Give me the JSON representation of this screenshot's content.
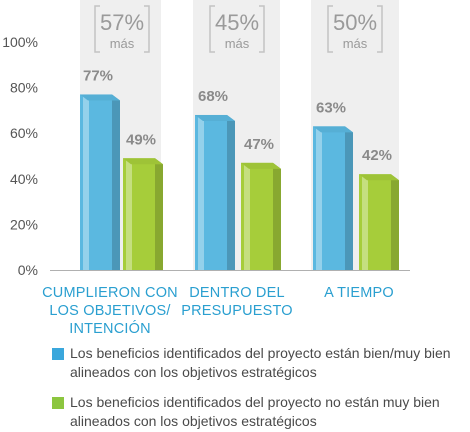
{
  "chart_data": {
    "type": "bar",
    "categories": [
      "CUMPLIERON CON\nLOS OBJETIVOS/\nINTENCIÓN",
      "DENTRO DEL\nPRESUPUESTO",
      "A TIEMPO"
    ],
    "series": [
      {
        "name": "Los beneficios identificados del proyecto están bien/muy bien alineados con los objetivos estratégicos",
        "values": [
          77,
          68,
          63
        ],
        "color": "#5bb8e0"
      },
      {
        "name": "Los beneficios identificados del proyecto no están muy bien alineados con los objetivos estratégicos",
        "values": [
          49,
          47,
          42
        ],
        "color": "#a6cd3a"
      }
    ],
    "value_labels": [
      [
        "77%",
        "68%",
        "63%"
      ],
      [
        "49%",
        "47%",
        "42%"
      ]
    ],
    "annotations": [
      {
        "value": "57%",
        "text": "más"
      },
      {
        "value": "45%",
        "text": "más"
      },
      {
        "value": "50%",
        "text": "más"
      }
    ],
    "yticks": [
      "0%",
      "20%",
      "40%",
      "60%",
      "80%",
      "100%"
    ],
    "ylim": [
      0,
      100
    ],
    "grid": false,
    "legend_position": "bottom"
  }
}
